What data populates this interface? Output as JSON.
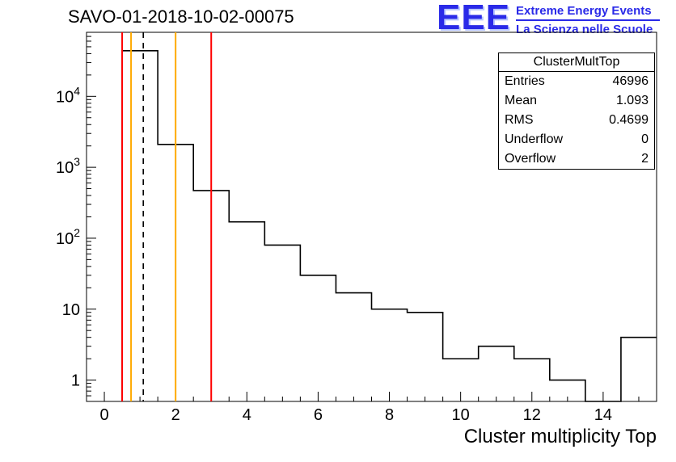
{
  "title": "SAVO-01-2018-10-02-00075",
  "logo": {
    "text": "EEE",
    "line1": "Extreme Energy Events",
    "line2": "La Scienza nelle Scuole",
    "color": "#2a2ae8"
  },
  "stats": {
    "title": "ClusterMultTop",
    "rows": [
      {
        "label": "Entries",
        "value": "46996"
      },
      {
        "label": "Mean",
        "value": "1.093"
      },
      {
        "label": "RMS",
        "value": "0.4699"
      },
      {
        "label": "Underflow",
        "value": "0"
      },
      {
        "label": "Overflow",
        "value": "2"
      }
    ]
  },
  "chart_data": {
    "type": "bar",
    "style": "step-histogram",
    "title": "SAVO-01-2018-10-02-00075",
    "xlabel": "Cluster multiplicity Top",
    "ylabel": "",
    "y_scale": "log",
    "x_range": [
      -0.5,
      15.5
    ],
    "y_range": [
      0.5,
      80000
    ],
    "bin_width": 1,
    "bin_centers": [
      1,
      2,
      3,
      4,
      5,
      6,
      7,
      8,
      9,
      10,
      11,
      12,
      13,
      14,
      15
    ],
    "counts": [
      44000,
      2100,
      470,
      170,
      80,
      30,
      17,
      10,
      9,
      2,
      3,
      2,
      1,
      0,
      4
    ],
    "line_color": "#000000",
    "x_ticks": [
      0,
      2,
      4,
      6,
      8,
      10,
      12,
      14
    ],
    "y_ticks": [
      {
        "v": 1,
        "label": "1"
      },
      {
        "v": 10,
        "label": "10"
      },
      {
        "v": 100,
        "label": "10",
        "exp": "2"
      },
      {
        "v": 1000,
        "label": "10",
        "exp": "3"
      },
      {
        "v": 10000,
        "label": "10",
        "exp": "4"
      }
    ],
    "marker_lines": [
      {
        "x": 0.5,
        "color": "#ff0000",
        "style": "solid"
      },
      {
        "x": 0.75,
        "color": "#ffaa00",
        "style": "solid"
      },
      {
        "x": 1.093,
        "color": "#000000",
        "style": "dashed"
      },
      {
        "x": 2.0,
        "color": "#ffaa00",
        "style": "solid"
      },
      {
        "x": 3.0,
        "color": "#ff0000",
        "style": "solid"
      }
    ],
    "grid": false,
    "legend": false
  }
}
